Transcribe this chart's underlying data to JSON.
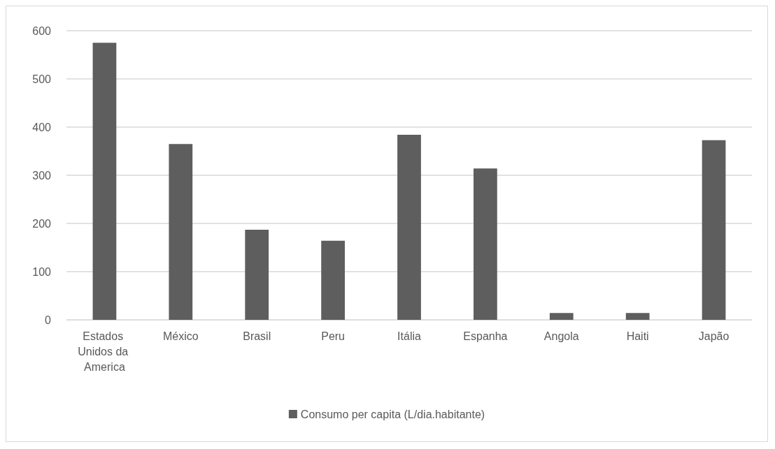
{
  "chart_data": {
    "type": "bar",
    "categories": [
      "Estados Unidos da America",
      "México",
      "Brasil",
      "Peru",
      "Itália",
      "Espanha",
      "Angola",
      "Haiti",
      "Japão"
    ],
    "series": [
      {
        "name": "Consumo per capita (L/dia.habitante)",
        "color": "#5e5e5e",
        "values": [
          575,
          365,
          187,
          164,
          384,
          314,
          14,
          14,
          373
        ]
      }
    ],
    "ylim": [
      0,
      600
    ],
    "yticks": [
      0,
      100,
      200,
      300,
      400,
      500,
      600
    ],
    "grid": "y",
    "legend": "bottom"
  }
}
